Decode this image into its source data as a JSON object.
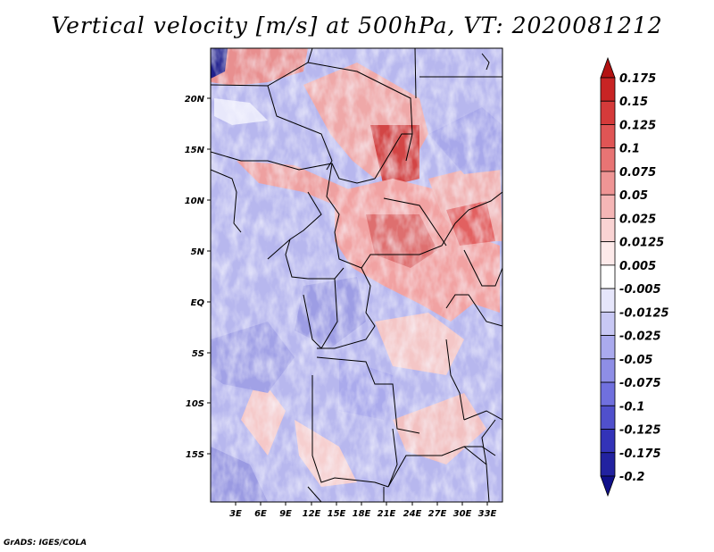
{
  "title": "Vertical velocity [m/s] at 500hPa, VT: 2020081212",
  "credit": "GrADS: IGES/COLA",
  "map": {
    "lat_labels": [
      "20N",
      "15N",
      "10N",
      "5N",
      "EQ",
      "5S",
      "10S",
      "15S"
    ],
    "lon_labels": [
      "3E",
      "6E",
      "9E",
      "12E",
      "15E",
      "18E",
      "21E",
      "24E",
      "27E",
      "30E",
      "33E"
    ]
  },
  "colorbar": {
    "labels": [
      "0.175",
      "0.15",
      "0.125",
      "0.1",
      "0.075",
      "0.05",
      "0.025",
      "0.0125",
      "0.005",
      "-0.005",
      "-0.0125",
      "-0.025",
      "-0.05",
      "-0.075",
      "-0.1",
      "-0.125",
      "-0.175",
      "-0.2"
    ],
    "colors": [
      "#b31212",
      "#c82424",
      "#d53a3a",
      "#e05555",
      "#e87474",
      "#ef9595",
      "#f5b6b6",
      "#f9d3d3",
      "#fdeaea",
      "#ffffff",
      "#e6e6fb",
      "#c8c8f4",
      "#aaaaee",
      "#8e8ee6",
      "#7070de",
      "#5050cc",
      "#3333b8",
      "#2222a0",
      "#10108a"
    ]
  },
  "colors": {
    "frame": "#000000",
    "border_line": "#000000"
  }
}
